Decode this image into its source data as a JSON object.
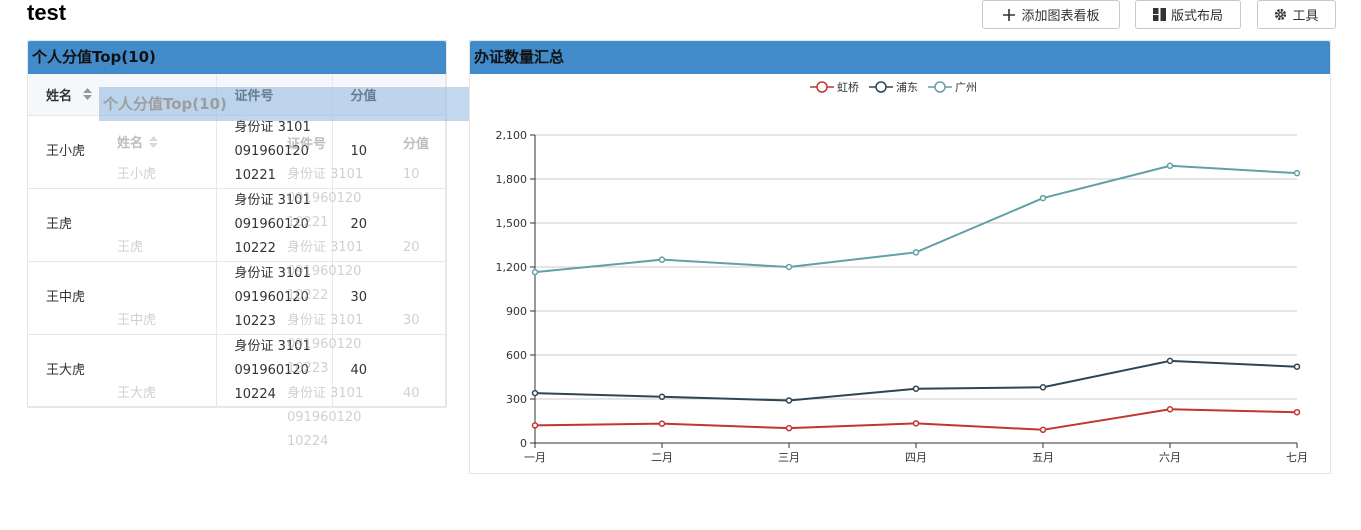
{
  "page": {
    "title": "test"
  },
  "toolbar": {
    "add_board": "添加图表看板",
    "layout": "版式布局",
    "tools": "工具"
  },
  "table_panel": {
    "title": "个人分值Top(10)",
    "columns": [
      "姓名",
      "证件号",
      "分值"
    ],
    "rows": [
      {
        "name": "王小虎",
        "id_lines": [
          "身份证 3101",
          "091960120",
          "10221"
        ],
        "score": "10"
      },
      {
        "name": "王虎",
        "id_lines": [
          "身份证 3101",
          "091960120",
          "10222"
        ],
        "score": "20"
      },
      {
        "name": "王中虎",
        "id_lines": [
          "身份证 3101",
          "091960120",
          "10223"
        ],
        "score": "30"
      },
      {
        "name": "王大虎",
        "id_lines": [
          "身份证 3101",
          "091960120",
          "10224"
        ],
        "score": "40"
      }
    ]
  },
  "chart_panel": {
    "title": "办证数量汇总"
  },
  "chart_data": {
    "type": "line",
    "categories": [
      "一月",
      "二月",
      "三月",
      "四月",
      "五月",
      "六月",
      "七月"
    ],
    "series": [
      {
        "name": "虹桥",
        "color": "#c23531",
        "values": [
          120,
          132,
          101,
          134,
          90,
          230,
          210
        ]
      },
      {
        "name": "浦东",
        "color": "#2f4554",
        "values": [
          340,
          315,
          290,
          370,
          380,
          560,
          520
        ]
      },
      {
        "name": "广州",
        "color": "#61a0a8",
        "values": [
          1165,
          1250,
          1200,
          1300,
          1670,
          1890,
          1840
        ]
      }
    ],
    "ylim": [
      0,
      2100
    ],
    "yticks": [
      "0",
      "300",
      "600",
      "900",
      "1,200",
      "1,500",
      "1,800",
      "2,100"
    ],
    "ytick_values": [
      0,
      300,
      600,
      900,
      1200,
      1500,
      1800,
      2100
    ],
    "grid": true,
    "legend": "top-center"
  }
}
